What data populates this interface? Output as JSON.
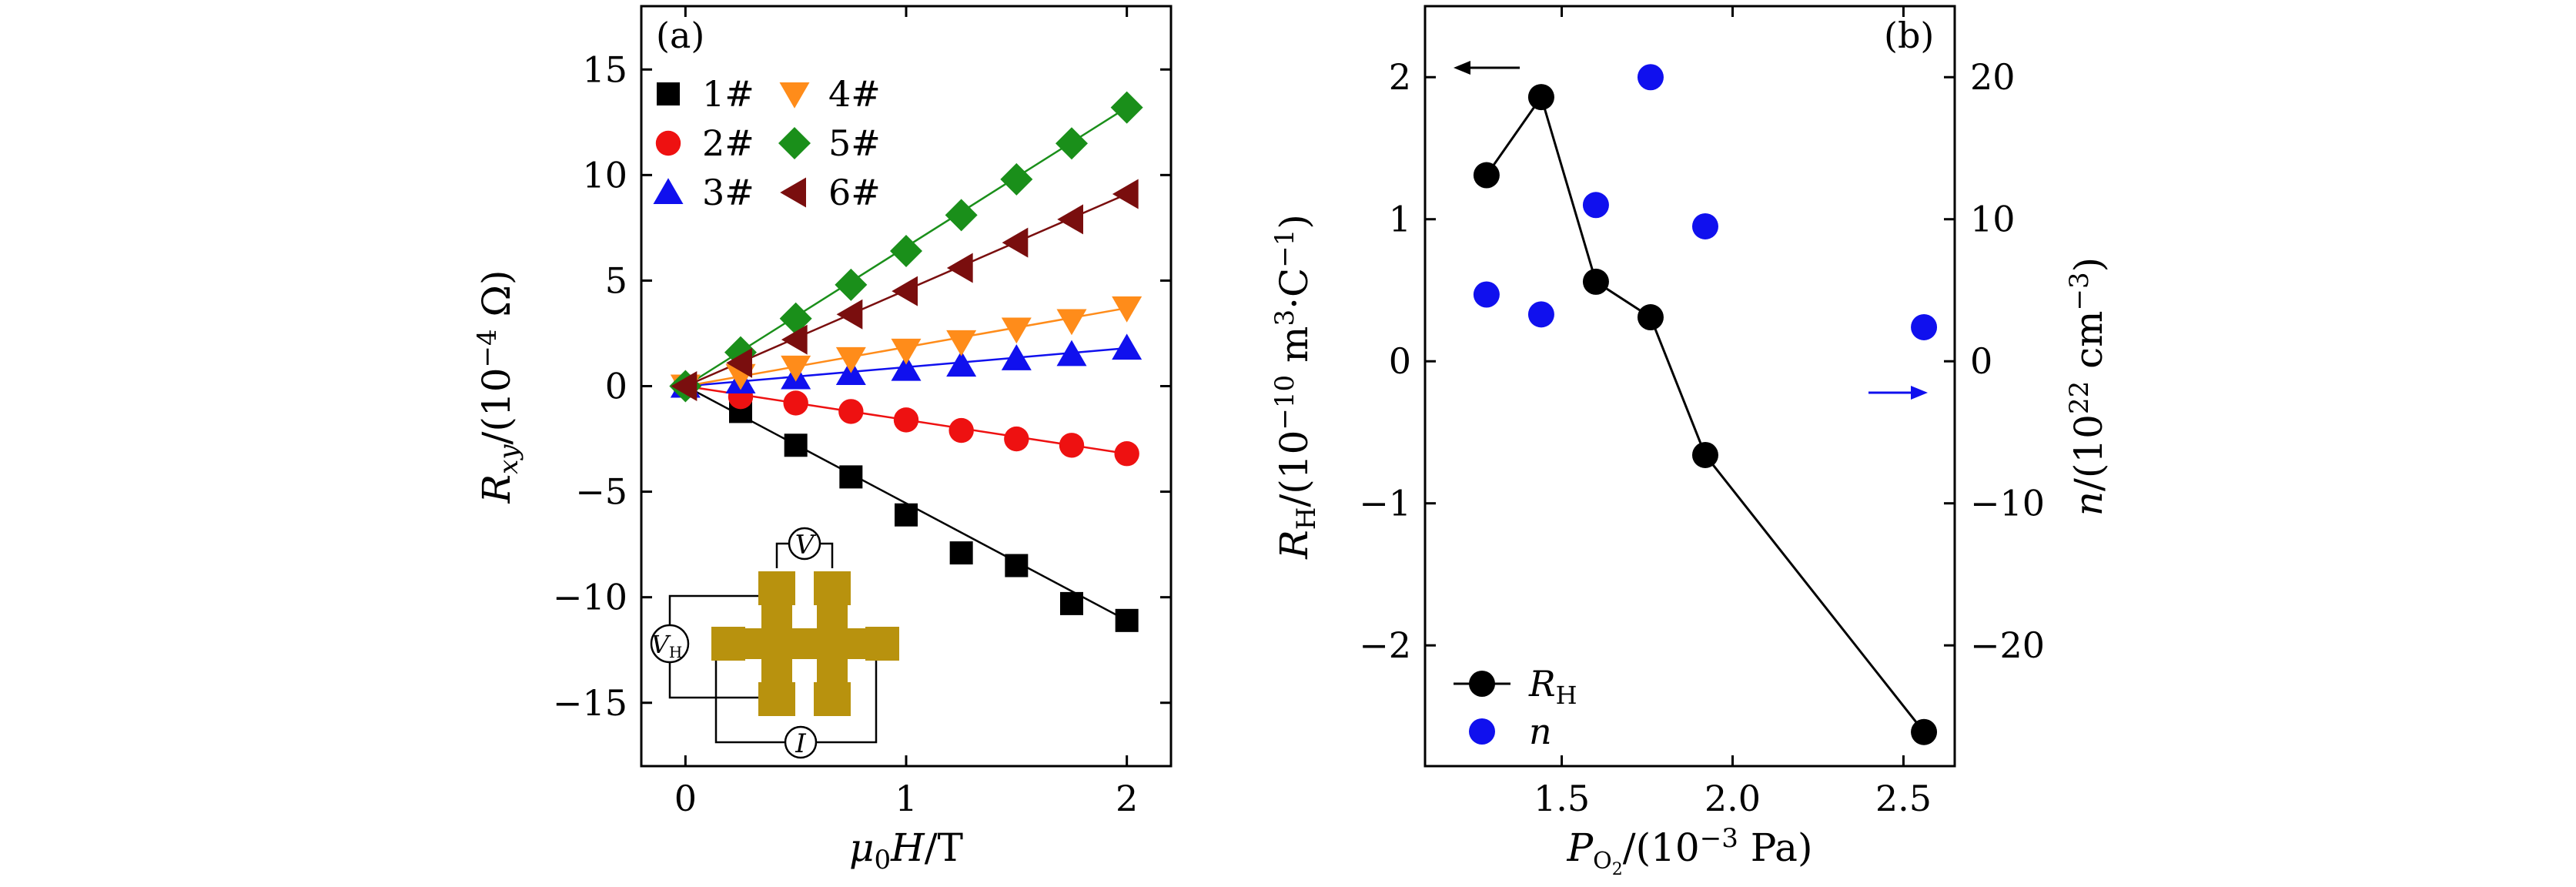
{
  "colors": {
    "1#": "#000000",
    "2#": "#ee1111",
    "3#": "#1010ee",
    "4#": "#ff8c1a",
    "5#": "#1a8f1a",
    "6#": "#7a0e0e",
    "inset": "#b8920e",
    "n": "#1010ee",
    "RH": "#000000"
  },
  "chart_data": [
    {
      "type": "line",
      "panel_label": "(a)",
      "xlabel": "μ0H/T",
      "ylabel": "Rxy/(10−4 Ω)",
      "xlim": [
        -0.2,
        2.2
      ],
      "ylim": [
        -18,
        18
      ],
      "xticks": [
        "0",
        "1",
        "2"
      ],
      "yticks": [
        "15",
        "10",
        "5",
        "0",
        "−5",
        "−10",
        "−15"
      ],
      "legend_position": "top-left",
      "x": [
        0,
        0.25,
        0.5,
        0.75,
        1.0,
        1.25,
        1.5,
        1.75,
        2.0
      ],
      "series": [
        {
          "name": "1#",
          "marker": "square",
          "values": [
            0,
            -1.2,
            -2.8,
            -4.3,
            -6.1,
            -7.9,
            -8.5,
            -10.3,
            -11.1
          ]
        },
        {
          "name": "2#",
          "marker": "circle",
          "values": [
            0,
            -0.5,
            -0.8,
            -1.2,
            -1.6,
            -2.1,
            -2.5,
            -2.8,
            -3.2
          ]
        },
        {
          "name": "3#",
          "marker": "triangle-up",
          "values": [
            0,
            0.2,
            0.4,
            0.6,
            0.8,
            1.0,
            1.3,
            1.5,
            1.8
          ]
        },
        {
          "name": "4#",
          "marker": "triangle-down",
          "values": [
            0,
            0.5,
            0.9,
            1.3,
            1.7,
            2.1,
            2.7,
            3.1,
            3.7
          ]
        },
        {
          "name": "5#",
          "marker": "diamond",
          "values": [
            0,
            1.6,
            3.2,
            4.8,
            6.4,
            8.1,
            9.8,
            11.5,
            13.2
          ]
        },
        {
          "name": "6#",
          "marker": "triangle-left",
          "values": [
            0,
            1.1,
            2.2,
            3.4,
            4.5,
            5.6,
            6.8,
            7.9,
            9.1
          ]
        }
      ],
      "inset_labels": {
        "v": "V",
        "vh": "VH",
        "i": "I"
      }
    },
    {
      "type": "scatter",
      "panel_label": "(b)",
      "xlabel": "PO2/(10−3 Pa)",
      "ylabel_left": "RH/(10−10 m3·C−1)",
      "ylabel_right": "n/(1022 cm−3)",
      "xlim": [
        1.1,
        2.65
      ],
      "ylim_left": [
        -2.85,
        2.5
      ],
      "ylim_right": [
        -28.5,
        25
      ],
      "xticks": [
        "1.5",
        "2.0",
        "2.5"
      ],
      "yticks_left": [
        "2",
        "1",
        "0",
        "−1",
        "−2"
      ],
      "yticks_right": [
        "20",
        "10",
        "0",
        "−10",
        "−20"
      ],
      "legend_position": "bottom-left",
      "series": [
        {
          "name": "RH",
          "axis": "left",
          "line": true,
          "x": [
            1.28,
            1.44,
            1.6,
            1.76,
            1.92,
            2.56
          ],
          "values": [
            1.31,
            1.86,
            0.56,
            0.31,
            -0.66,
            -2.61
          ]
        },
        {
          "name": "n",
          "axis": "right",
          "line": false,
          "x": [
            1.28,
            1.44,
            1.6,
            1.76,
            1.92,
            2.56
          ],
          "values": [
            4.7,
            3.3,
            11.0,
            20.0,
            9.5,
            2.4
          ]
        }
      ]
    }
  ]
}
